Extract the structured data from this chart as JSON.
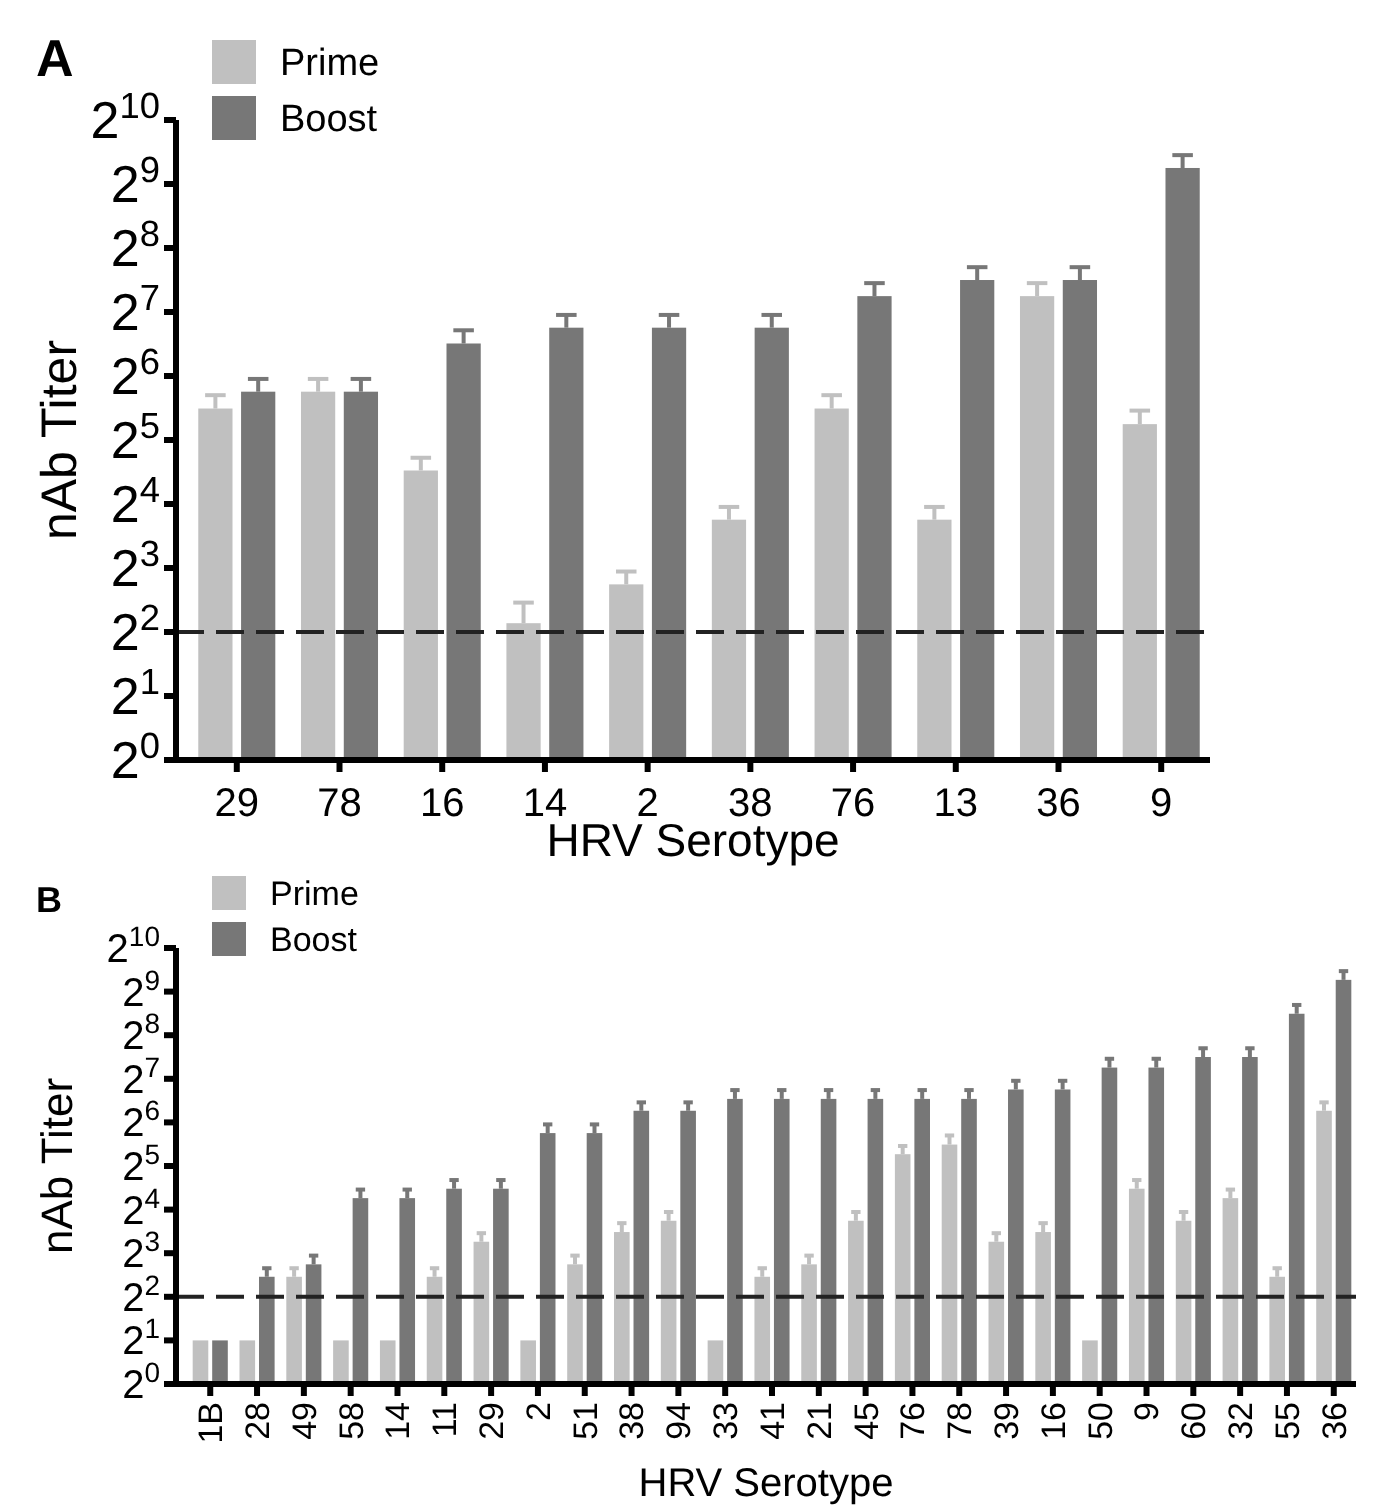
{
  "chart_data": [
    {
      "type": "bar",
      "title": "A",
      "xlabel": "HRV Serotype",
      "ylabel": "nAb Titer",
      "categories": [
        "29",
        "78",
        "16",
        "14",
        "2",
        "38",
        "76",
        "13",
        "36",
        "9"
      ],
      "series": [
        {
          "name": "Prime",
          "color": "#c0c0c0",
          "values": [
            45,
            54,
            23,
            4.4,
            6.7,
            13.5,
            45,
            13.5,
            152,
            38
          ],
          "errors": [
            [
              45,
              52
            ],
            [
              54,
              62
            ],
            [
              23,
              26.4
            ],
            [
              4.4,
              5.5
            ],
            [
              6.7,
              7.7
            ],
            [
              13.5,
              15.5
            ],
            [
              45,
              52
            ],
            [
              13.5,
              15.5
            ],
            [
              152,
              175
            ],
            [
              38,
              44
            ]
          ]
        },
        {
          "name": "Boost",
          "color": "#777777",
          "values": [
            54,
            54,
            91,
            108,
            108,
            108,
            152,
            181,
            181,
            609
          ],
          "errors": [
            [
              54,
              62
            ],
            [
              54,
              62
            ],
            [
              91,
              105
            ],
            [
              108,
              124
            ],
            [
              108,
              124
            ],
            [
              108,
              124
            ],
            [
              152,
              175
            ],
            [
              181,
              208
            ],
            [
              181,
              208
            ],
            [
              609,
              700
            ]
          ]
        }
      ],
      "log": "y",
      "ylim": [
        1,
        1024
      ],
      "yticks": [
        {
          "value": 1,
          "label": "2$^{0}$"
        },
        {
          "value": 2,
          "label": "2$^{1}$"
        },
        {
          "value": 4,
          "label": "2$^{2}$"
        },
        {
          "value": 8,
          "label": "2$^{3}$"
        },
        {
          "value": 16,
          "label": "2$^{4}$"
        },
        {
          "value": 32,
          "label": "2$^{5}$"
        },
        {
          "value": 64,
          "label": "2$^{6}$"
        },
        {
          "value": 128,
          "label": "2$^{7}$"
        },
        {
          "value": 256,
          "label": "2$^{8}$"
        },
        {
          "value": 512,
          "label": "2$^{9}$"
        },
        {
          "value": 1024,
          "label": "2$^{10}$"
        }
      ],
      "ref_lines": [
        {
          "axis": "y",
          "value": 4,
          "color": "#222222",
          "line_style": "dashed"
        }
      ],
      "legend": "top left",
      "grid": false
    },
    {
      "type": "bar",
      "title": "B",
      "xlabel": "HRV Serotype",
      "ylabel": "nAb Titer",
      "categories": [
        "1B",
        "28",
        "49",
        "58",
        "14",
        "11",
        "29",
        "2",
        "51",
        "38",
        "94",
        "33",
        "41",
        "21",
        "45",
        "76",
        "78",
        "39",
        "16",
        "50",
        "9",
        "60",
        "32",
        "55",
        "36"
      ],
      "series": [
        {
          "name": "Prime",
          "color": "#c0c0c0",
          "values": [
            2,
            2,
            5.5,
            2,
            2,
            5.5,
            9.6,
            2,
            6.7,
            11.2,
            13.4,
            2,
            5.5,
            6.7,
            13.4,
            38.6,
            45,
            9.6,
            11.2,
            2,
            22.3,
            13.4,
            19.2,
            5.5,
            77
          ],
          "errors": [
            null,
            null,
            [
              5.5,
              6.3
            ],
            null,
            null,
            [
              5.5,
              6.3
            ],
            [
              9.6,
              11
            ],
            null,
            [
              6.7,
              7.7
            ],
            [
              11.2,
              12.9
            ],
            [
              13.4,
              15.4
            ],
            null,
            [
              5.5,
              6.3
            ],
            [
              6.7,
              7.7
            ],
            [
              13.4,
              15.4
            ],
            [
              38.6,
              44
            ],
            [
              45,
              52
            ],
            [
              9.6,
              11
            ],
            [
              11.2,
              12.9
            ],
            null,
            [
              22.3,
              25.6
            ],
            [
              13.4,
              15.4
            ],
            [
              19.2,
              22
            ],
            [
              5.5,
              6.3
            ],
            [
              77,
              88
            ]
          ]
        },
        {
          "name": "Boost",
          "color": "#777777",
          "values": [
            2,
            5.5,
            6.7,
            19.2,
            19.2,
            22.3,
            22.3,
            54,
            54,
            77,
            77,
            93,
            93,
            93,
            93,
            93,
            93,
            108,
            108,
            153,
            153,
            181,
            181,
            360,
            617
          ],
          "errors": [
            null,
            [
              5.5,
              6.3
            ],
            [
              6.7,
              7.7
            ],
            [
              19.2,
              22
            ],
            [
              19.2,
              22
            ],
            [
              22.3,
              25.6
            ],
            [
              22.3,
              25.6
            ],
            [
              54,
              62
            ],
            [
              54,
              62
            ],
            [
              77,
              88
            ],
            [
              77,
              88
            ],
            [
              93,
              107
            ],
            [
              93,
              107
            ],
            [
              93,
              107
            ],
            [
              93,
              107
            ],
            [
              93,
              107
            ],
            [
              93,
              107
            ],
            [
              108,
              124
            ],
            [
              108,
              124
            ],
            [
              153,
              176
            ],
            [
              153,
              176
            ],
            [
              181,
              208
            ],
            [
              181,
              208
            ],
            [
              360,
              414
            ],
            [
              617,
              709
            ]
          ]
        }
      ],
      "log": "y",
      "ylim": [
        1,
        1024
      ],
      "yticks": [
        {
          "value": 1,
          "label": "2$^{0}$"
        },
        {
          "value": 2,
          "label": "2$^{1}$"
        },
        {
          "value": 4,
          "label": "2$^{2}$"
        },
        {
          "value": 8,
          "label": "2$^{3}$"
        },
        {
          "value": 16,
          "label": "2$^{4}$"
        },
        {
          "value": 32,
          "label": "2$^{5}$"
        },
        {
          "value": 64,
          "label": "2$^{6}$"
        },
        {
          "value": 128,
          "label": "2$^{7}$"
        },
        {
          "value": 256,
          "label": "2$^{8}$"
        },
        {
          "value": 512,
          "label": "2$^{9}$"
        },
        {
          "value": 1024,
          "label": "2$^{10}$"
        }
      ],
      "ref_lines": [
        {
          "axis": "y",
          "value": 4,
          "color": "#222222",
          "line_style": "dashed"
        }
      ],
      "legend": "top left",
      "grid": false
    }
  ]
}
